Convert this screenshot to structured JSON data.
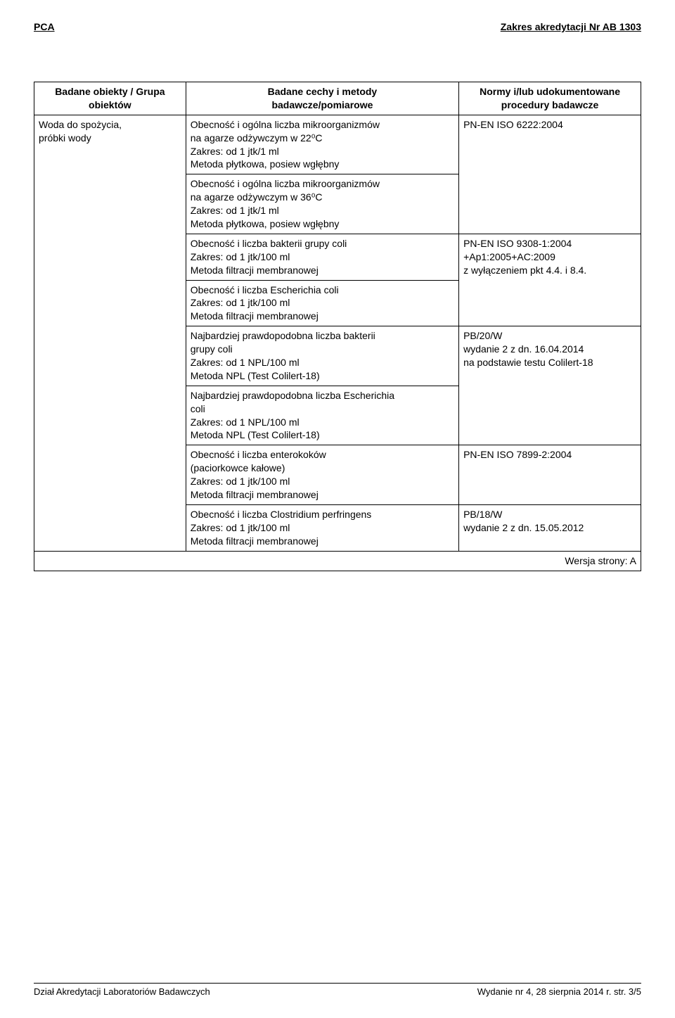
{
  "header": {
    "left": "PCA",
    "right": "Zakres akredytacji Nr AB 1303"
  },
  "table": {
    "headers": {
      "col1": "Badane obiekty / Grupa obiektów",
      "col2": "Badane cechy i metody\nbadawcze/pomiarowe",
      "col3": "Normy i/lub udokumentowane\nprocedury badawcze"
    },
    "object_group": "Woda do spożycia,\npróbki wody",
    "rows": [
      {
        "method": "Obecność i ogólna liczba mikroorganizmów\nna agarze odżywczym w 22⁰C\nZakres: od 1 jtk/1 ml\nMetoda płytkowa, posiew wgłębny",
        "norm": "PN-EN ISO 6222:2004",
        "norm_rowspan": 2
      },
      {
        "method": "Obecność i ogólna liczba mikroorganizmów\nna agarze odżywczym w 36⁰C\nZakres: od 1 jtk/1 ml\nMetoda płytkowa, posiew wgłębny"
      },
      {
        "method": "Obecność i liczba bakterii grupy coli\nZakres: od 1 jtk/100 ml\nMetoda filtracji membranowej",
        "norm": "PN-EN ISO 9308-1:2004\n+Ap1:2005+AC:2009\nz wyłączeniem pkt 4.4. i 8.4.",
        "norm_rowspan": 2
      },
      {
        "method": "Obecność i liczba Escherichia coli\nZakres: od 1 jtk/100 ml\nMetoda filtracji membranowej"
      },
      {
        "method": "Najbardziej prawdopodobna liczba bakterii\ngrupy coli\nZakres: od  1 NPL/100 ml\nMetoda NPL (Test Colilert-18)",
        "norm": "PB/20/W\nwydanie 2 z dn. 16.04.2014\nna podstawie testu Colilert-18",
        "norm_rowspan": 2
      },
      {
        "method": "Najbardziej prawdopodobna liczba Escherichia\ncoli\nZakres: od  1 NPL/100 ml\nMetoda NPL (Test Colilert-18)"
      },
      {
        "method": "Obecność i liczba enterokoków\n(paciorkowce kałowe)\nZakres: od 1 jtk/100 ml\nMetoda filtracji membranowej",
        "norm": "PN-EN ISO 7899-2:2004",
        "norm_rowspan": 1
      },
      {
        "method": "Obecność i liczba Clostridium perfringens\nZakres: od 1 jtk/100 ml\nMetoda filtracji membranowej",
        "norm": "PB/18/W\nwydanie 2 z dn. 15.05.2012",
        "norm_rowspan": 1
      }
    ],
    "version_text": "Wersja strony: A"
  },
  "footer": {
    "left": "Dział Akredytacji Laboratoriów Badawczych",
    "right": "Wydanie nr 4, 28 sierpnia 2014 r.    str. 3/5"
  }
}
